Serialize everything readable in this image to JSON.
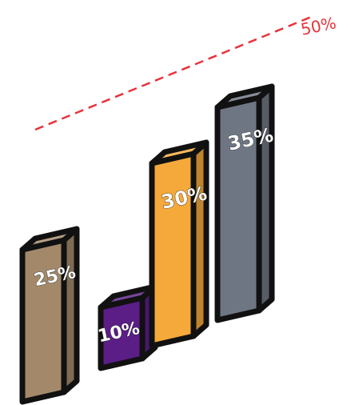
{
  "chart_data": {
    "type": "bar",
    "categories": [
      "",
      "",
      "",
      ""
    ],
    "values": [
      25,
      10,
      30,
      35
    ],
    "value_labels": [
      "25%",
      "10%",
      "30%",
      "35%"
    ],
    "colors": [
      "#a3896a",
      "#5b1d86",
      "#f5a93a",
      "#6f7683"
    ],
    "reference_line": {
      "value": 50,
      "label": "50%",
      "color": "#e8333b",
      "style": "dashed"
    },
    "title": "",
    "xlabel": "",
    "ylabel": "",
    "ylim": [
      0,
      50
    ],
    "grid": false,
    "legend": "none",
    "style": "3d-isometric"
  }
}
